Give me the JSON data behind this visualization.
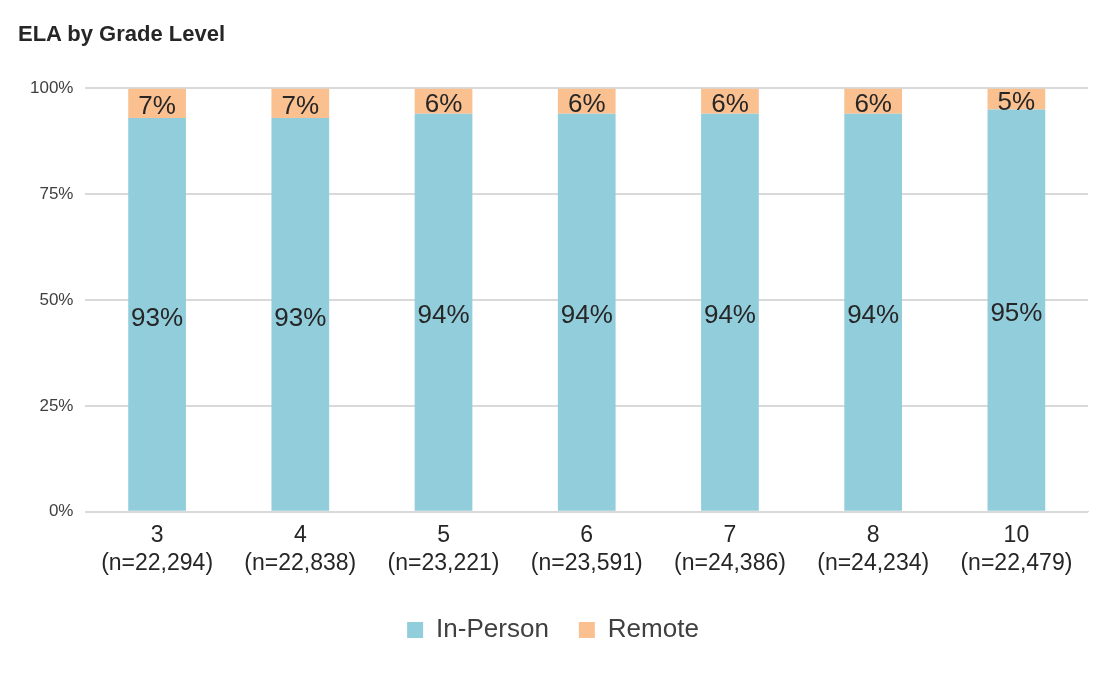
{
  "chart_data": {
    "type": "bar",
    "title": "ELA by Grade Level",
    "stacked": true,
    "categories": [
      "3\n(n=22,294)",
      "4\n(n=22,838)",
      "5\n(n=23,221)",
      "6\n(n=23,591)",
      "7\n(n=24,386)",
      "8\n(n=24,234)",
      "10\n(n=22,479)"
    ],
    "series": [
      {
        "name": "In-Person",
        "color": "#92cddc",
        "values": [
          93,
          93,
          94,
          94,
          94,
          94,
          95
        ],
        "value_labels": [
          "93%",
          "93%",
          "94%",
          "94%",
          "94%",
          "94%",
          "95%"
        ]
      },
      {
        "name": "Remote",
        "color": "#fac090",
        "values": [
          7,
          7,
          6,
          6,
          6,
          6,
          5
        ],
        "value_labels": [
          "7%",
          "7%",
          "6%",
          "6%",
          "6%",
          "6%",
          "5%"
        ]
      }
    ],
    "ylim": [
      0,
      100
    ],
    "yticks": [
      {
        "value": 0,
        "label": "0%"
      },
      {
        "value": 25,
        "label": "25%"
      },
      {
        "value": 50,
        "label": "50%"
      },
      {
        "value": 75,
        "label": "75%"
      },
      {
        "value": 100,
        "label": "100%"
      }
    ],
    "grid": "y",
    "legend": "bottom"
  }
}
